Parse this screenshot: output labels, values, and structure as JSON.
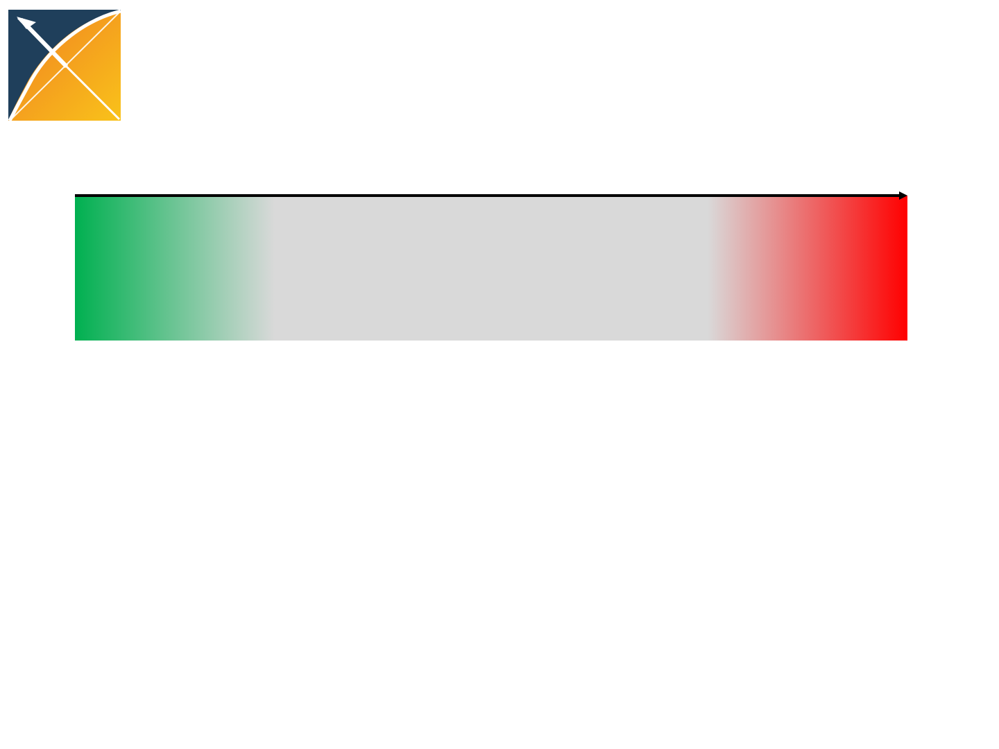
{
  "logo": {
    "icon": "ohdsi-logo-icon",
    "colors": {
      "navy": "#1f3f5b",
      "orange": "#f18a21",
      "yellow": "#f9c21a",
      "white": "#ffffff"
    }
  },
  "scale": {
    "direction_icon": "right-arrow-icon",
    "colors": {
      "start": "#00b050",
      "middle": "#d9d9d9",
      "end": "#ff0000",
      "arrow": "#000000"
    },
    "stops": [
      {
        "offset": 0.0,
        "color": "#00b050"
      },
      {
        "offset": 0.24,
        "color": "#d9d9d9"
      },
      {
        "offset": 0.76,
        "color": "#d9d9d9"
      },
      {
        "offset": 1.0,
        "color": "#ff0000"
      }
    ]
  }
}
